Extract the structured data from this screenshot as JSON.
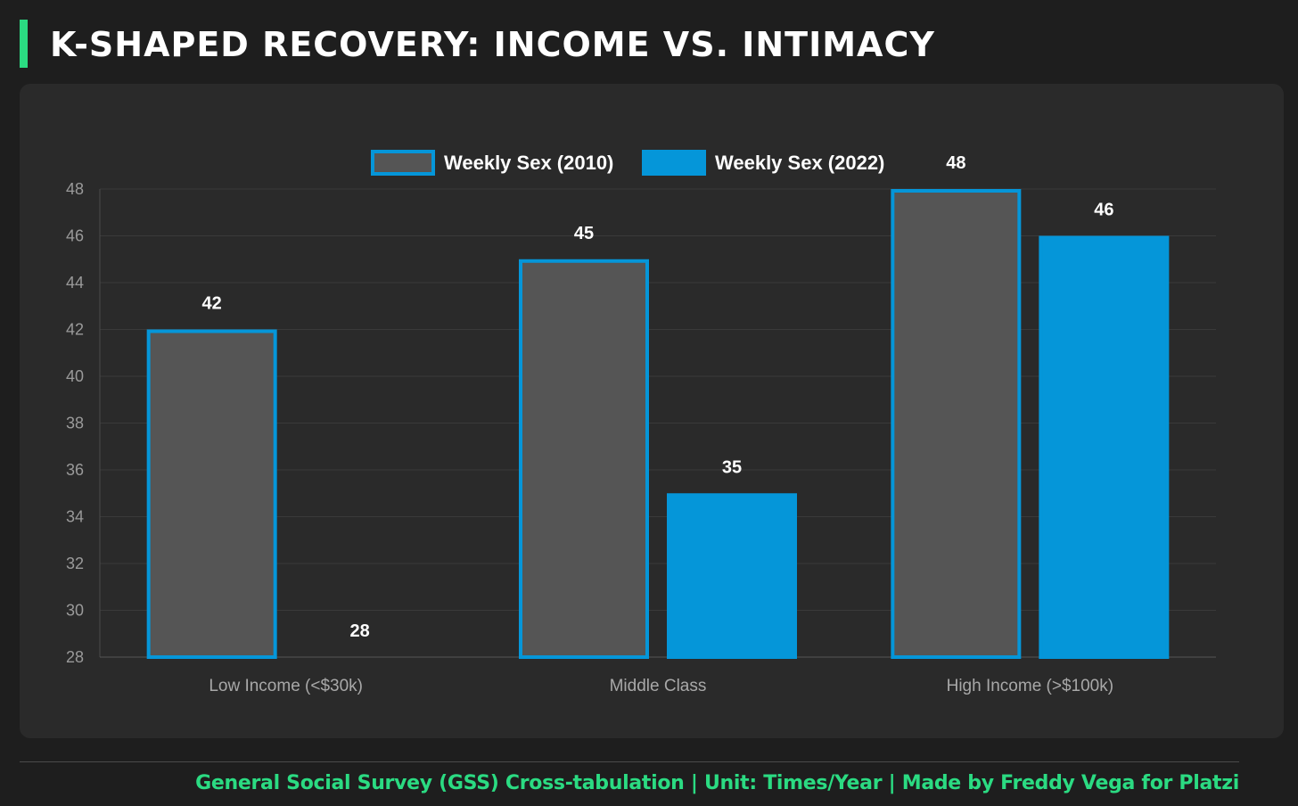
{
  "header": {
    "title": "K-SHAPED RECOVERY: INCOME VS. INTIMACY"
  },
  "footer": {
    "text": "General Social Survey (GSS) Cross-tabulation | Unit: Times/Year | Made by Freddy Vega for Platzi"
  },
  "colors": {
    "accent": "#2bdb82",
    "series_2010_fill": "#555555",
    "series_2010_border": "#0596d9",
    "series_2022_fill": "#0596d9",
    "series_2022_border": "#0596d9"
  },
  "chart_data": {
    "type": "bar",
    "title": "",
    "xlabel": "",
    "ylabel": "",
    "categories": [
      "Low Income (<$30k)",
      "Middle Class",
      "High Income (>$100k)"
    ],
    "series": [
      {
        "name": "Weekly Sex (2010)",
        "values": [
          42,
          45,
          48
        ]
      },
      {
        "name": "Weekly Sex (2022)",
        "values": [
          28,
          35,
          46
        ]
      }
    ],
    "ylim": [
      28,
      48
    ],
    "yticks": [
      28,
      30,
      32,
      34,
      36,
      38,
      40,
      42,
      44,
      46,
      48
    ],
    "grid": true,
    "legend": "top-center",
    "data_labels": true
  }
}
